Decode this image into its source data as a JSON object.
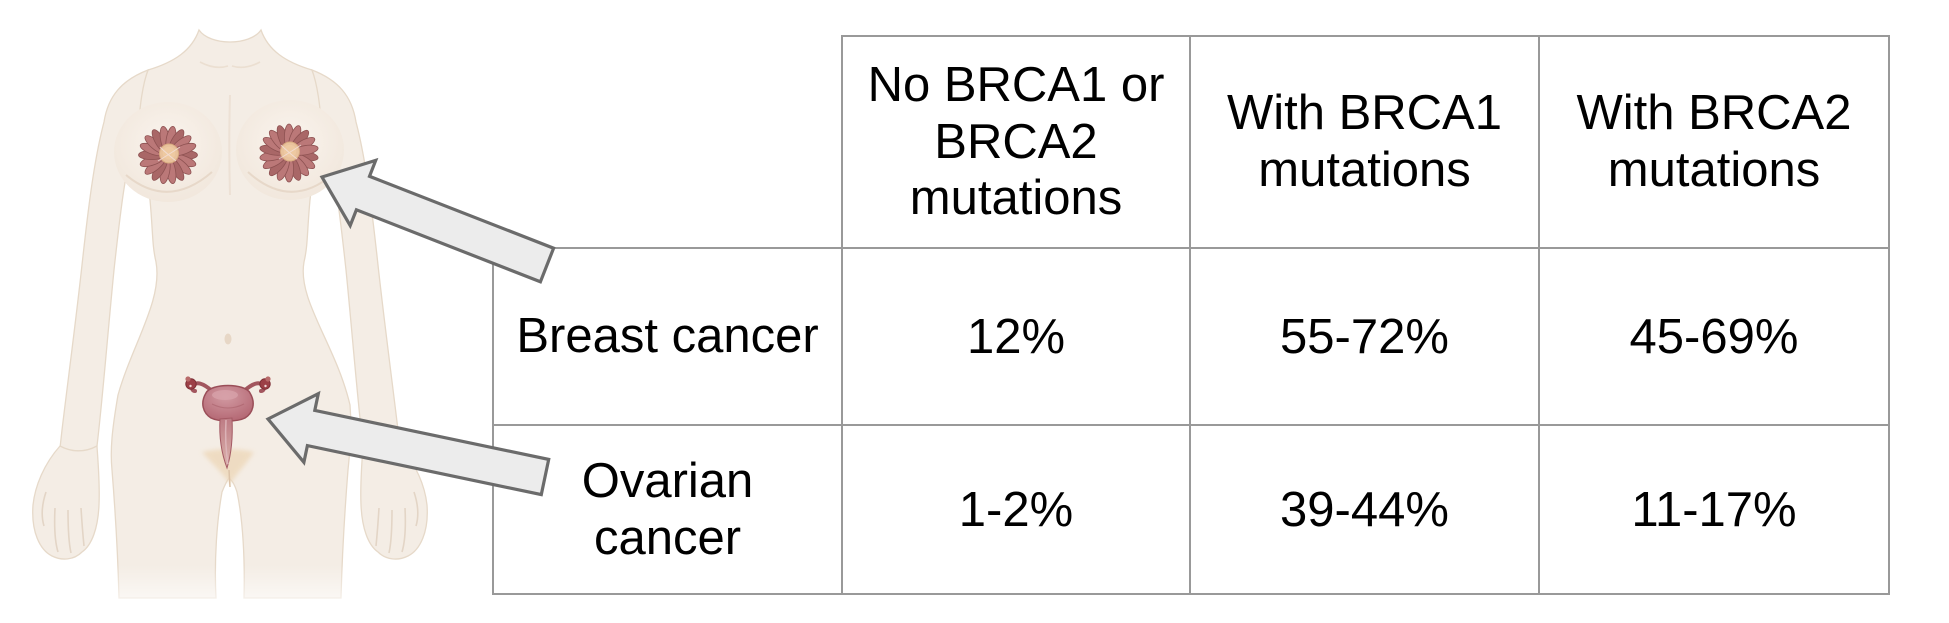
{
  "table": {
    "corner_label": "",
    "columns": [
      "No BRCA1 or BRCA2 mutations",
      "With BRCA1 mutations",
      "With BRCA2 mutations"
    ],
    "rows": [
      {
        "label": "Breast cancer",
        "values": [
          "12%",
          "55-72%",
          "45-69%"
        ]
      },
      {
        "label": "Ovarian cancer",
        "values": [
          "1-2%",
          "39-44%",
          "11-17%"
        ]
      }
    ]
  },
  "illustration": {
    "figure": "female-torso",
    "markers": [
      {
        "icon": "mammary-glands-icon",
        "points_to": "breasts"
      },
      {
        "icon": "uterus-ovaries-icon",
        "points_to": "uterus"
      }
    ],
    "arrows": [
      {
        "icon": "arrow-to-breasts-icon"
      },
      {
        "icon": "arrow-to-uterus-icon"
      }
    ]
  },
  "colors": {
    "table_border": "#999999",
    "text": "#000000",
    "arrow_fill": "#ececec",
    "arrow_stroke": "#6b6b6b",
    "skin": "#f4ede5",
    "skin_edge": "#e6d9c9",
    "gland_petal": "#bb7878",
    "gland_petal_dark": "#a96767",
    "gland_outline": "#8e5252",
    "gland_center": "#e9c29c",
    "uterus_body": "#bd737d",
    "uterus_outline": "#9a4e58",
    "fimbriae": "#9c4047",
    "pubic_shade": "#eed9bc"
  }
}
